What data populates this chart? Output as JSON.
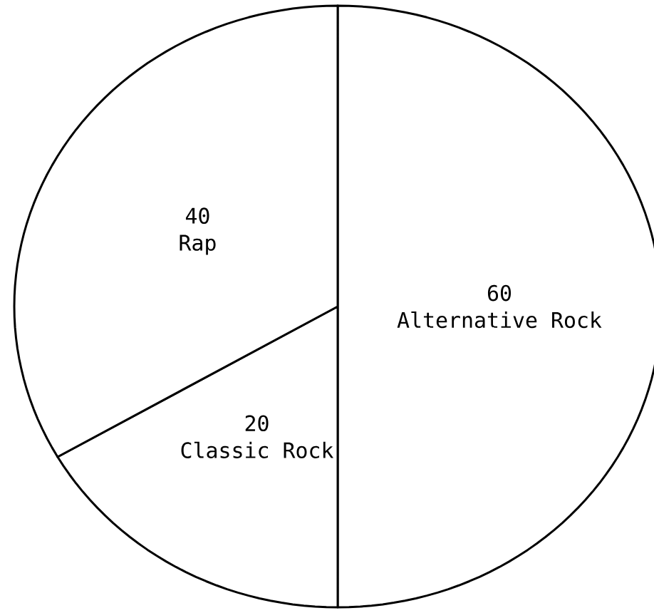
{
  "chart_data": {
    "type": "pie",
    "categories": [
      "Alternative Rock",
      "Classic Rock",
      "Rap"
    ],
    "values": [
      60,
      20,
      40
    ],
    "colors": [
      "#ffffff",
      "#ffffff",
      "#ffffff"
    ],
    "data_labels": true
  }
}
